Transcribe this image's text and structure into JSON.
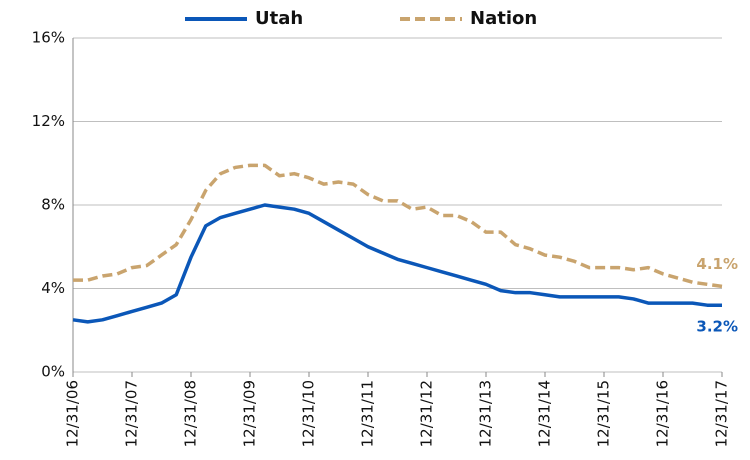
{
  "chart_data": {
    "type": "line",
    "categories": [
      "12/31/06",
      null,
      null,
      null,
      "12/31/07",
      null,
      null,
      null,
      "12/31/08",
      null,
      null,
      null,
      "12/31/09",
      null,
      null,
      null,
      "12/31/10",
      null,
      null,
      null,
      "12/31/11",
      null,
      null,
      null,
      "12/31/12",
      null,
      null,
      null,
      "12/31/13",
      null,
      null,
      null,
      "12/31/14",
      null,
      null,
      null,
      "12/31/15",
      null,
      null,
      null,
      "12/31/16",
      null,
      null,
      null,
      "12/31/17"
    ],
    "series": [
      {
        "name": "Utah",
        "color": "#0b57b8",
        "dashed": false,
        "values": [
          2.5,
          2.4,
          2.5,
          2.7,
          2.9,
          3.1,
          3.3,
          3.7,
          5.5,
          7.0,
          7.4,
          7.6,
          7.8,
          8.0,
          7.9,
          7.8,
          7.6,
          7.2,
          6.8,
          6.4,
          6.0,
          5.7,
          5.4,
          5.2,
          5.0,
          4.8,
          4.6,
          4.4,
          4.2,
          3.9,
          3.8,
          3.8,
          3.7,
          3.6,
          3.6,
          3.6,
          3.6,
          3.6,
          3.5,
          3.3,
          3.3,
          3.3,
          3.3,
          3.2,
          3.2
        ],
        "value_labels": [
          null,
          null,
          null,
          null,
          null,
          null,
          null,
          null,
          null,
          null,
          null,
          null,
          null,
          null,
          null,
          null,
          null,
          null,
          null,
          null,
          null,
          null,
          null,
          null,
          null,
          null,
          null,
          null,
          null,
          null,
          null,
          null,
          null,
          null,
          null,
          null,
          null,
          null,
          null,
          null,
          null,
          null,
          null,
          null,
          "3.2%"
        ]
      },
      {
        "name": "Nation",
        "color": "#c9a46e",
        "dashed": true,
        "values": [
          4.4,
          4.4,
          4.6,
          4.7,
          5.0,
          5.1,
          5.6,
          6.1,
          7.3,
          8.7,
          9.5,
          9.8,
          9.9,
          9.9,
          9.4,
          9.5,
          9.3,
          9.0,
          9.1,
          9.0,
          8.5,
          8.2,
          8.2,
          7.8,
          7.9,
          7.5,
          7.5,
          7.2,
          6.7,
          6.7,
          6.1,
          5.9,
          5.6,
          5.5,
          5.3,
          5.0,
          5.0,
          5.0,
          4.9,
          5.0,
          4.7,
          4.5,
          4.3,
          4.2,
          4.1
        ],
        "value_labels": [
          null,
          null,
          null,
          null,
          null,
          null,
          null,
          null,
          null,
          null,
          null,
          null,
          null,
          null,
          null,
          null,
          null,
          null,
          null,
          null,
          null,
          null,
          null,
          null,
          null,
          null,
          null,
          null,
          null,
          null,
          null,
          null,
          null,
          null,
          null,
          null,
          null,
          null,
          null,
          null,
          null,
          null,
          null,
          null,
          "4.1%"
        ]
      }
    ],
    "ylim": [
      0,
      16
    ],
    "yticks": [
      {
        "value": 0,
        "label": "0%"
      },
      {
        "value": 4,
        "label": "4%"
      },
      {
        "value": 8,
        "label": "8%"
      },
      {
        "value": 12,
        "label": "12%"
      },
      {
        "value": 16,
        "label": "16%"
      }
    ],
    "grid": true,
    "legend": "top"
  }
}
